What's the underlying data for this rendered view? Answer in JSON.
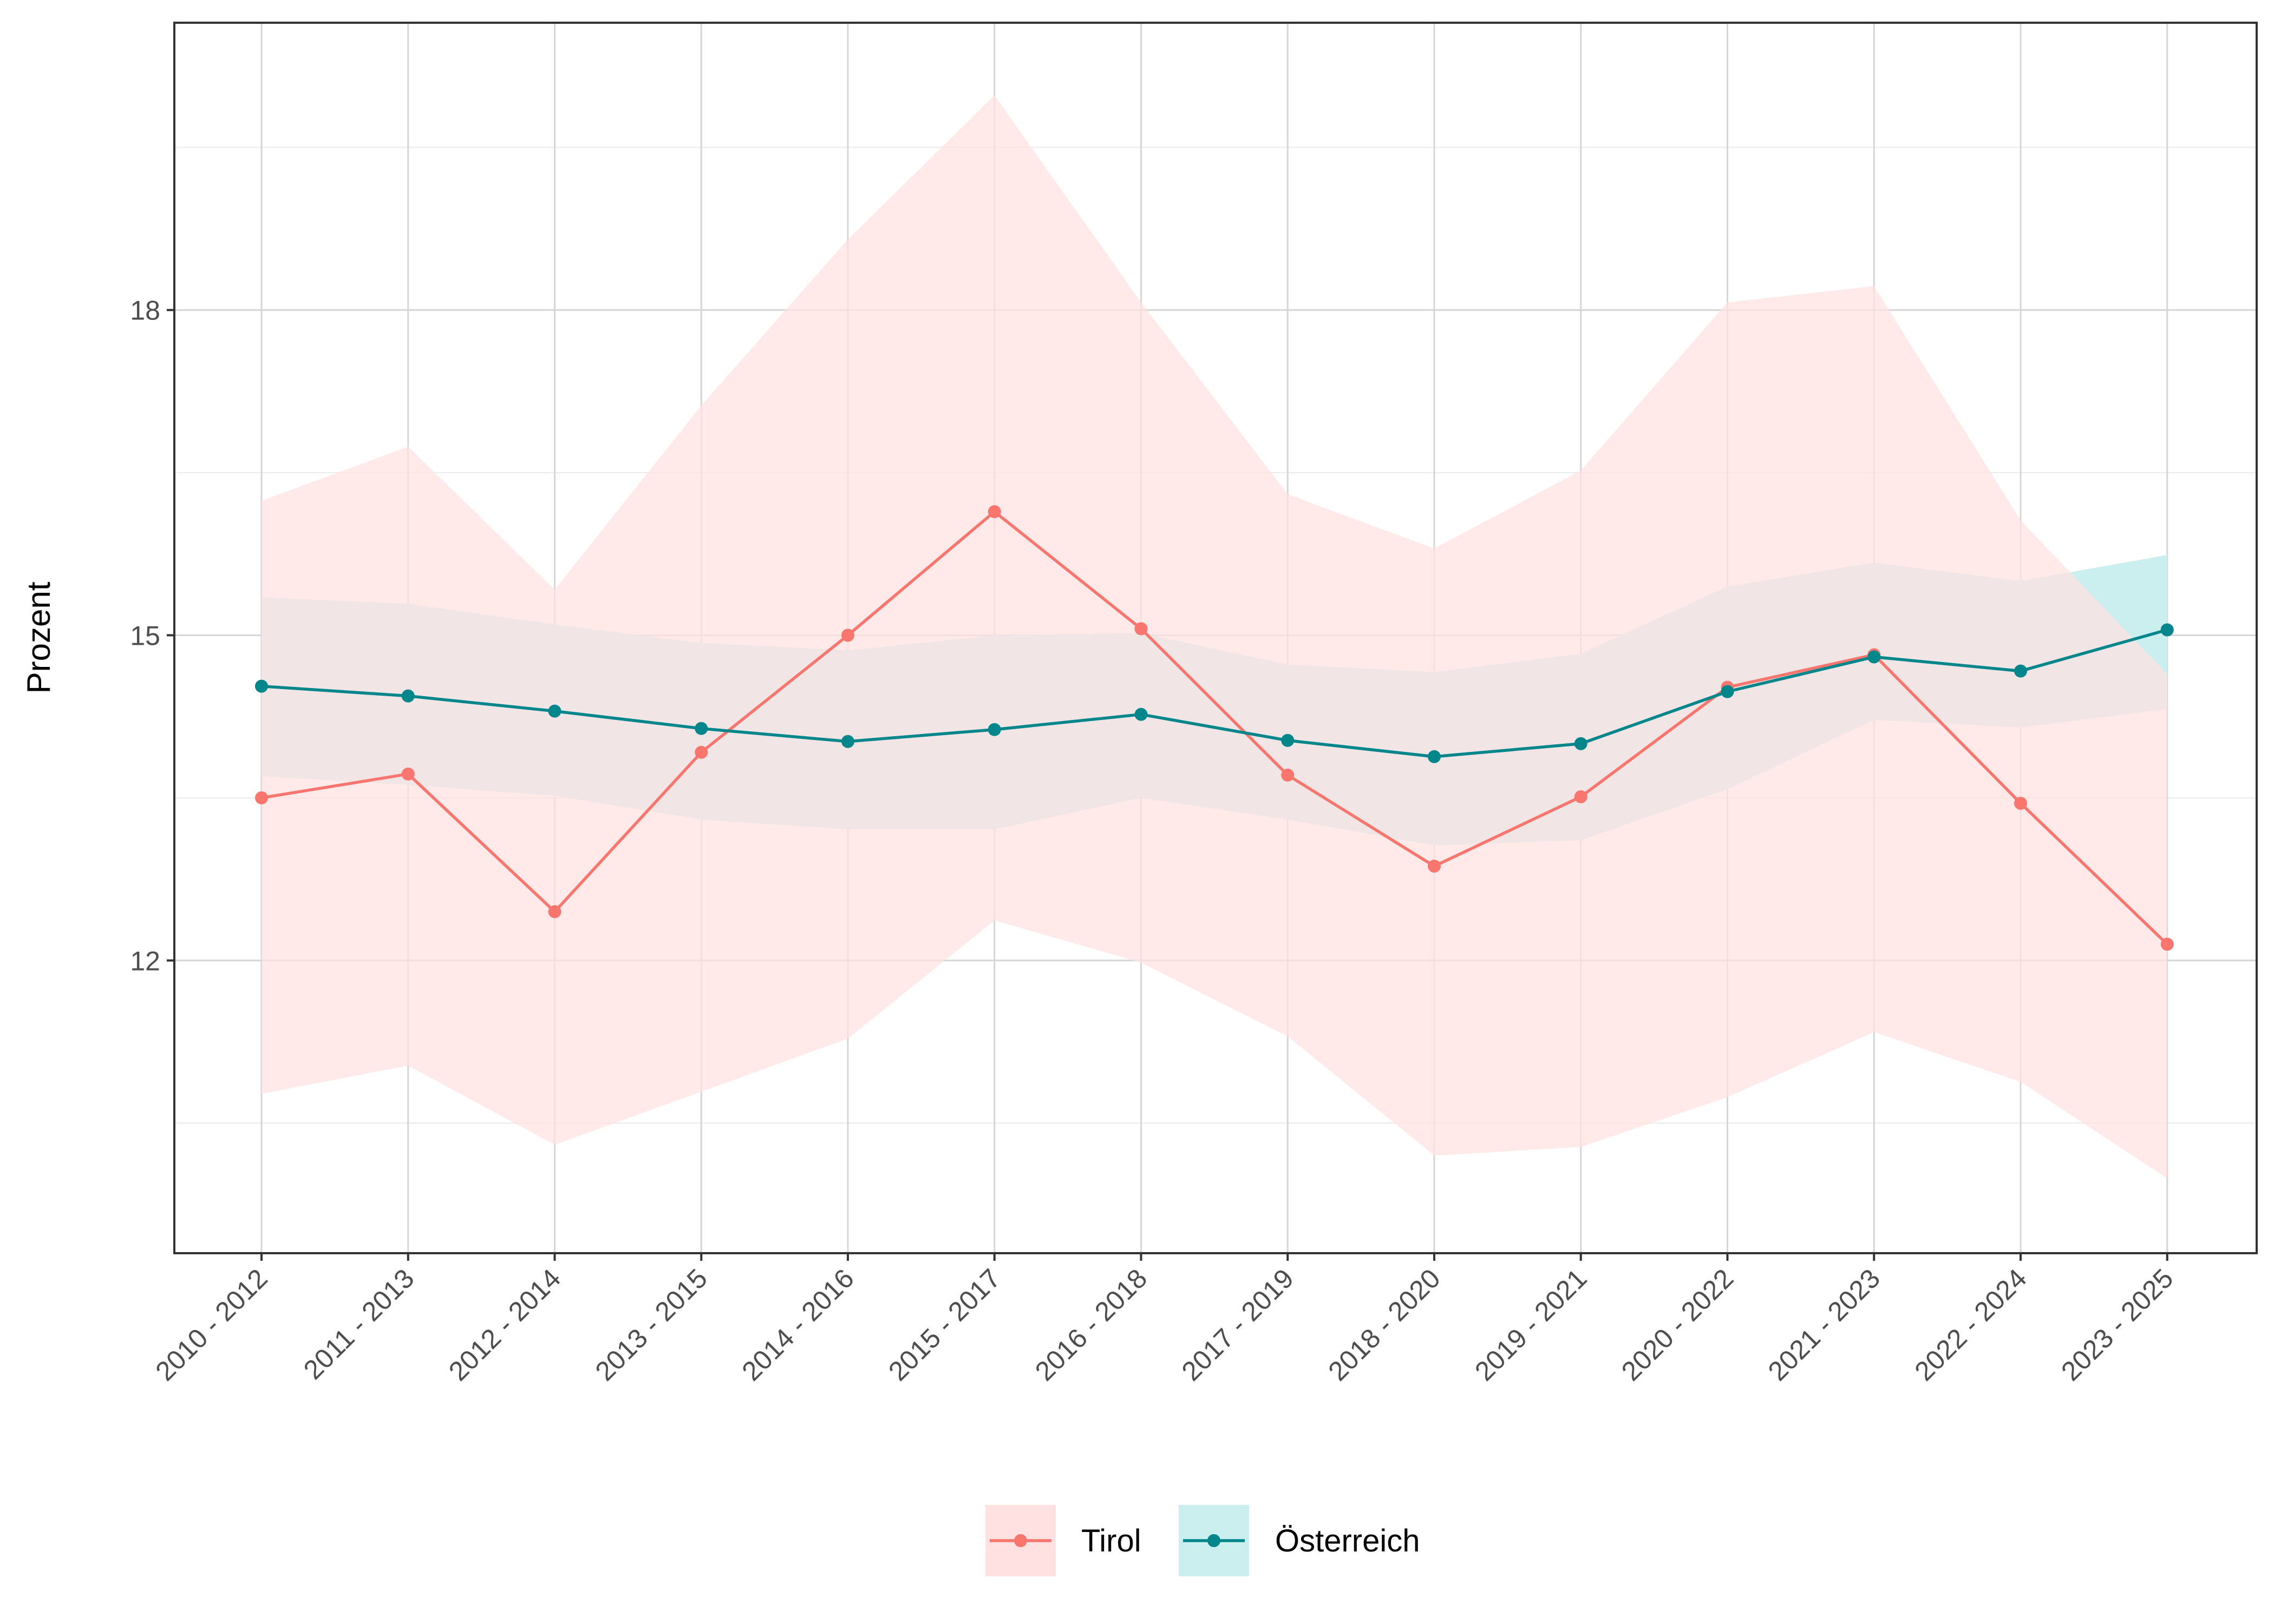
{
  "chart_data": {
    "type": "line",
    "title": "",
    "xlabel": "",
    "ylabel": "Prozent",
    "ylim": [
      9.3,
      20.65
    ],
    "yticks": [
      12,
      15,
      18
    ],
    "grid": true,
    "legend_position": "bottom",
    "categories": [
      "2010 - 2012",
      "2011 - 2013",
      "2012 - 2014",
      "2013 - 2015",
      "2014 - 2016",
      "2015 - 2017",
      "2016 - 2018",
      "2017 - 2019",
      "2018 - 2020",
      "2019 - 2021",
      "2020 - 2022",
      "2021 - 2023",
      "2022 - 2024",
      "2023 - 2025"
    ],
    "series": [
      {
        "name": "Tirol",
        "color": "#F8766D",
        "band_color": "#FFE1E1",
        "values": [
          13.5,
          13.72,
          12.45,
          13.92,
          15.0,
          16.14,
          15.06,
          13.71,
          12.87,
          13.51,
          14.52,
          14.82,
          13.45,
          12.15
        ],
        "lower": [
          10.77,
          11.03,
          10.3,
          10.79,
          11.28,
          12.37,
          11.98,
          11.3,
          10.2,
          10.28,
          10.74,
          11.34,
          10.88,
          9.99
        ],
        "upper": [
          16.24,
          16.74,
          15.42,
          17.12,
          18.65,
          19.98,
          18.07,
          16.3,
          15.8,
          16.52,
          18.07,
          18.22,
          16.06,
          14.64
        ]
      },
      {
        "name": "Österreich",
        "color": "#00868B",
        "band_color": "#CBEFEF",
        "values": [
          14.53,
          14.44,
          14.3,
          14.14,
          14.02,
          14.13,
          14.27,
          14.03,
          13.88,
          14.0,
          14.48,
          14.8,
          14.67,
          15.05
        ],
        "lower": [
          13.7,
          13.62,
          13.52,
          13.3,
          13.21,
          13.21,
          13.5,
          13.3,
          13.06,
          13.11,
          13.58,
          14.22,
          14.15,
          14.32
        ],
        "upper": [
          15.35,
          15.29,
          15.1,
          14.93,
          14.86,
          15.0,
          15.02,
          14.73,
          14.66,
          14.83,
          15.45,
          15.67,
          15.5,
          15.74
        ]
      }
    ]
  }
}
